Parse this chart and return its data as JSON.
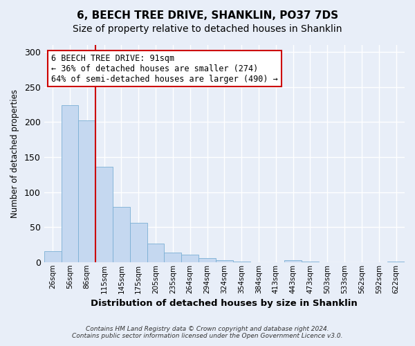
{
  "title": "6, BEECH TREE DRIVE, SHANKLIN, PO37 7DS",
  "subtitle": "Size of property relative to detached houses in Shanklin",
  "xlabel": "Distribution of detached houses by size in Shanklin",
  "ylabel": "Number of detached properties",
  "bar_color": "#c5d8f0",
  "bar_edge_color": "#7aafd4",
  "background_color": "#e8eef8",
  "plot_bg_color": "#e8eef8",
  "bin_labels": [
    "26sqm",
    "56sqm",
    "86sqm",
    "115sqm",
    "145sqm",
    "175sqm",
    "205sqm",
    "235sqm",
    "264sqm",
    "294sqm",
    "324sqm",
    "354sqm",
    "384sqm",
    "413sqm",
    "443sqm",
    "473sqm",
    "503sqm",
    "533sqm",
    "562sqm",
    "592sqm",
    "622sqm"
  ],
  "bar_heights": [
    16,
    224,
    202,
    136,
    79,
    56,
    26,
    14,
    11,
    6,
    3,
    1,
    0,
    0,
    3,
    1,
    0,
    0,
    0,
    0,
    1
  ],
  "ylim": [
    0,
    310
  ],
  "yticks": [
    0,
    50,
    100,
    150,
    200,
    250,
    300
  ],
  "vline_x": 2.5,
  "property_line_label": "6 BEECH TREE DRIVE: 91sqm",
  "annotation_line1": "← 36% of detached houses are smaller (274)",
  "annotation_line2": "64% of semi-detached houses are larger (490) →",
  "annotation_box_color": "#ffffff",
  "annotation_box_edge": "#cc0000",
  "vline_color": "#cc0000",
  "footer1": "Contains HM Land Registry data © Crown copyright and database right 2024.",
  "footer2": "Contains public sector information licensed under the Open Government Licence v3.0.",
  "grid_color": "#ffffff",
  "title_fontsize": 11,
  "subtitle_fontsize": 10
}
